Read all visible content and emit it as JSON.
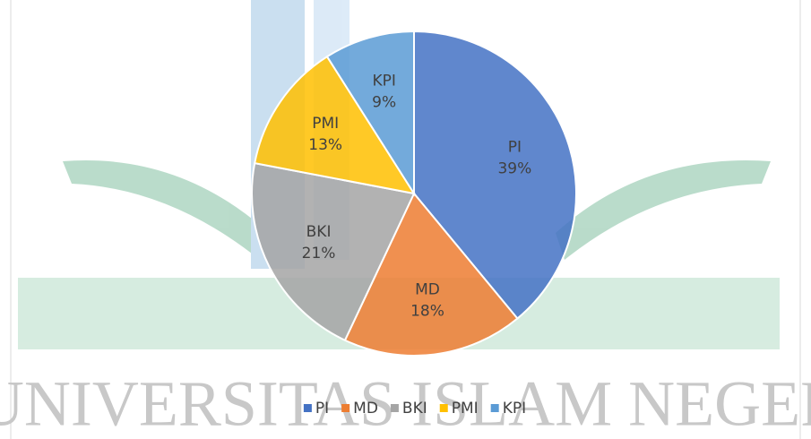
{
  "chart_data": {
    "type": "pie",
    "categories": [
      "PI",
      "MD",
      "BKI",
      "PMI",
      "KPI"
    ],
    "values": [
      39,
      18,
      21,
      13,
      9
    ],
    "value_labels": [
      "39%",
      "18%",
      "21%",
      "13%",
      "9%"
    ],
    "colors": [
      "#4472c4",
      "#ed7d31",
      "#a5a5a5",
      "#ffc000",
      "#5b9bd5"
    ],
    "legend": "bottom"
  },
  "watermark": "UNIVERSITAS ISLAM NEGERI"
}
